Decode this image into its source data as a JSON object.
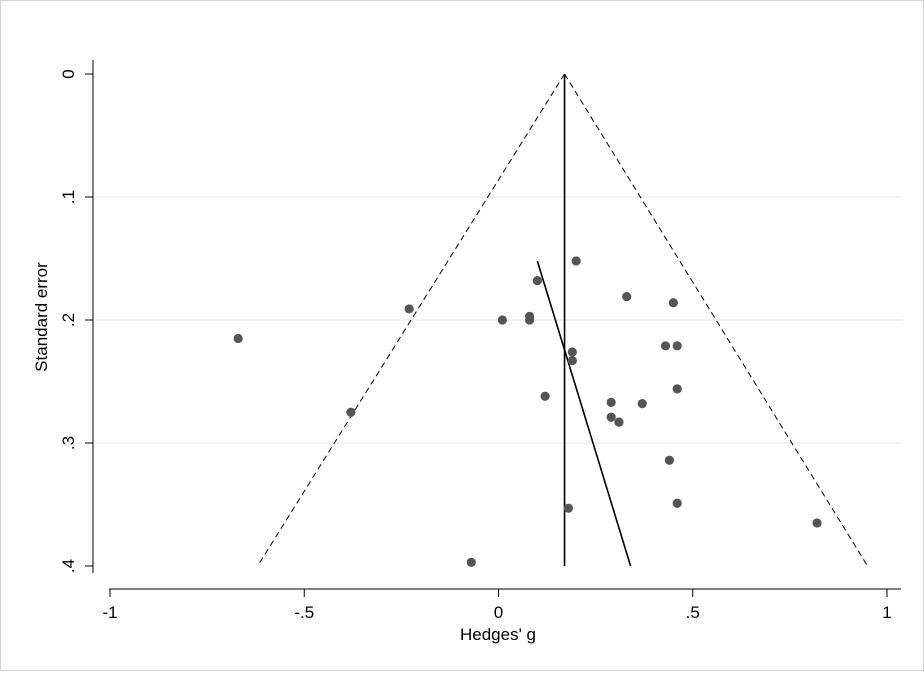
{
  "chart_data": {
    "type": "scatter",
    "subtype": "funnel-plot",
    "title": "",
    "xlabel": "Hedges' g",
    "ylabel": "Standard error",
    "xlim": [
      -1,
      1
    ],
    "ylim": [
      0,
      0.4
    ],
    "y_reversed": true,
    "grid": "horizontal",
    "x_ticks": [
      {
        "value": -1,
        "label": "-1"
      },
      {
        "value": -0.5,
        "label": "-.5"
      },
      {
        "value": 0,
        "label": "0"
      },
      {
        "value": 0.5,
        "label": ".5"
      },
      {
        "value": 1,
        "label": "1"
      }
    ],
    "y_ticks": [
      {
        "value": 0,
        "label": "0"
      },
      {
        "value": 0.1,
        "label": ".1"
      },
      {
        "value": 0.2,
        "label": ".2"
      },
      {
        "value": 0.3,
        "label": ".3"
      },
      {
        "value": 0.4,
        "label": ".4"
      }
    ],
    "pooled_effect": 0.17,
    "funnel_limits": {
      "apex": [
        0.17,
        0.0
      ],
      "left_bottom": [
        -0.62,
        0.4
      ],
      "right_bottom": [
        0.95,
        0.4
      ]
    },
    "egger_line": {
      "from": [
        0.1,
        0.152
      ],
      "to": [
        0.34,
        0.4
      ]
    },
    "points": [
      {
        "x": 0.2,
        "y": 0.152
      },
      {
        "x": 0.1,
        "y": 0.168
      },
      {
        "x": 0.33,
        "y": 0.181
      },
      {
        "x": 0.45,
        "y": 0.186
      },
      {
        "x": -0.23,
        "y": 0.191
      },
      {
        "x": 0.01,
        "y": 0.2
      },
      {
        "x": 0.08,
        "y": 0.197
      },
      {
        "x": 0.08,
        "y": 0.2
      },
      {
        "x": -0.67,
        "y": 0.215
      },
      {
        "x": 0.43,
        "y": 0.221
      },
      {
        "x": 0.46,
        "y": 0.221
      },
      {
        "x": 0.19,
        "y": 0.226
      },
      {
        "x": 0.19,
        "y": 0.233
      },
      {
        "x": 0.46,
        "y": 0.256
      },
      {
        "x": 0.12,
        "y": 0.262
      },
      {
        "x": 0.29,
        "y": 0.267
      },
      {
        "x": 0.37,
        "y": 0.268
      },
      {
        "x": -0.38,
        "y": 0.275
      },
      {
        "x": 0.29,
        "y": 0.279
      },
      {
        "x": 0.31,
        "y": 0.283
      },
      {
        "x": 0.44,
        "y": 0.314
      },
      {
        "x": 0.46,
        "y": 0.349
      },
      {
        "x": 0.18,
        "y": 0.353
      },
      {
        "x": 0.82,
        "y": 0.365
      },
      {
        "x": -0.07,
        "y": 0.397
      }
    ],
    "colors": {
      "background": "#ffffff",
      "axis": "#000000",
      "grid": "#e6e6e6",
      "points": "#555555",
      "frame_border": "#d4d4d4"
    }
  }
}
